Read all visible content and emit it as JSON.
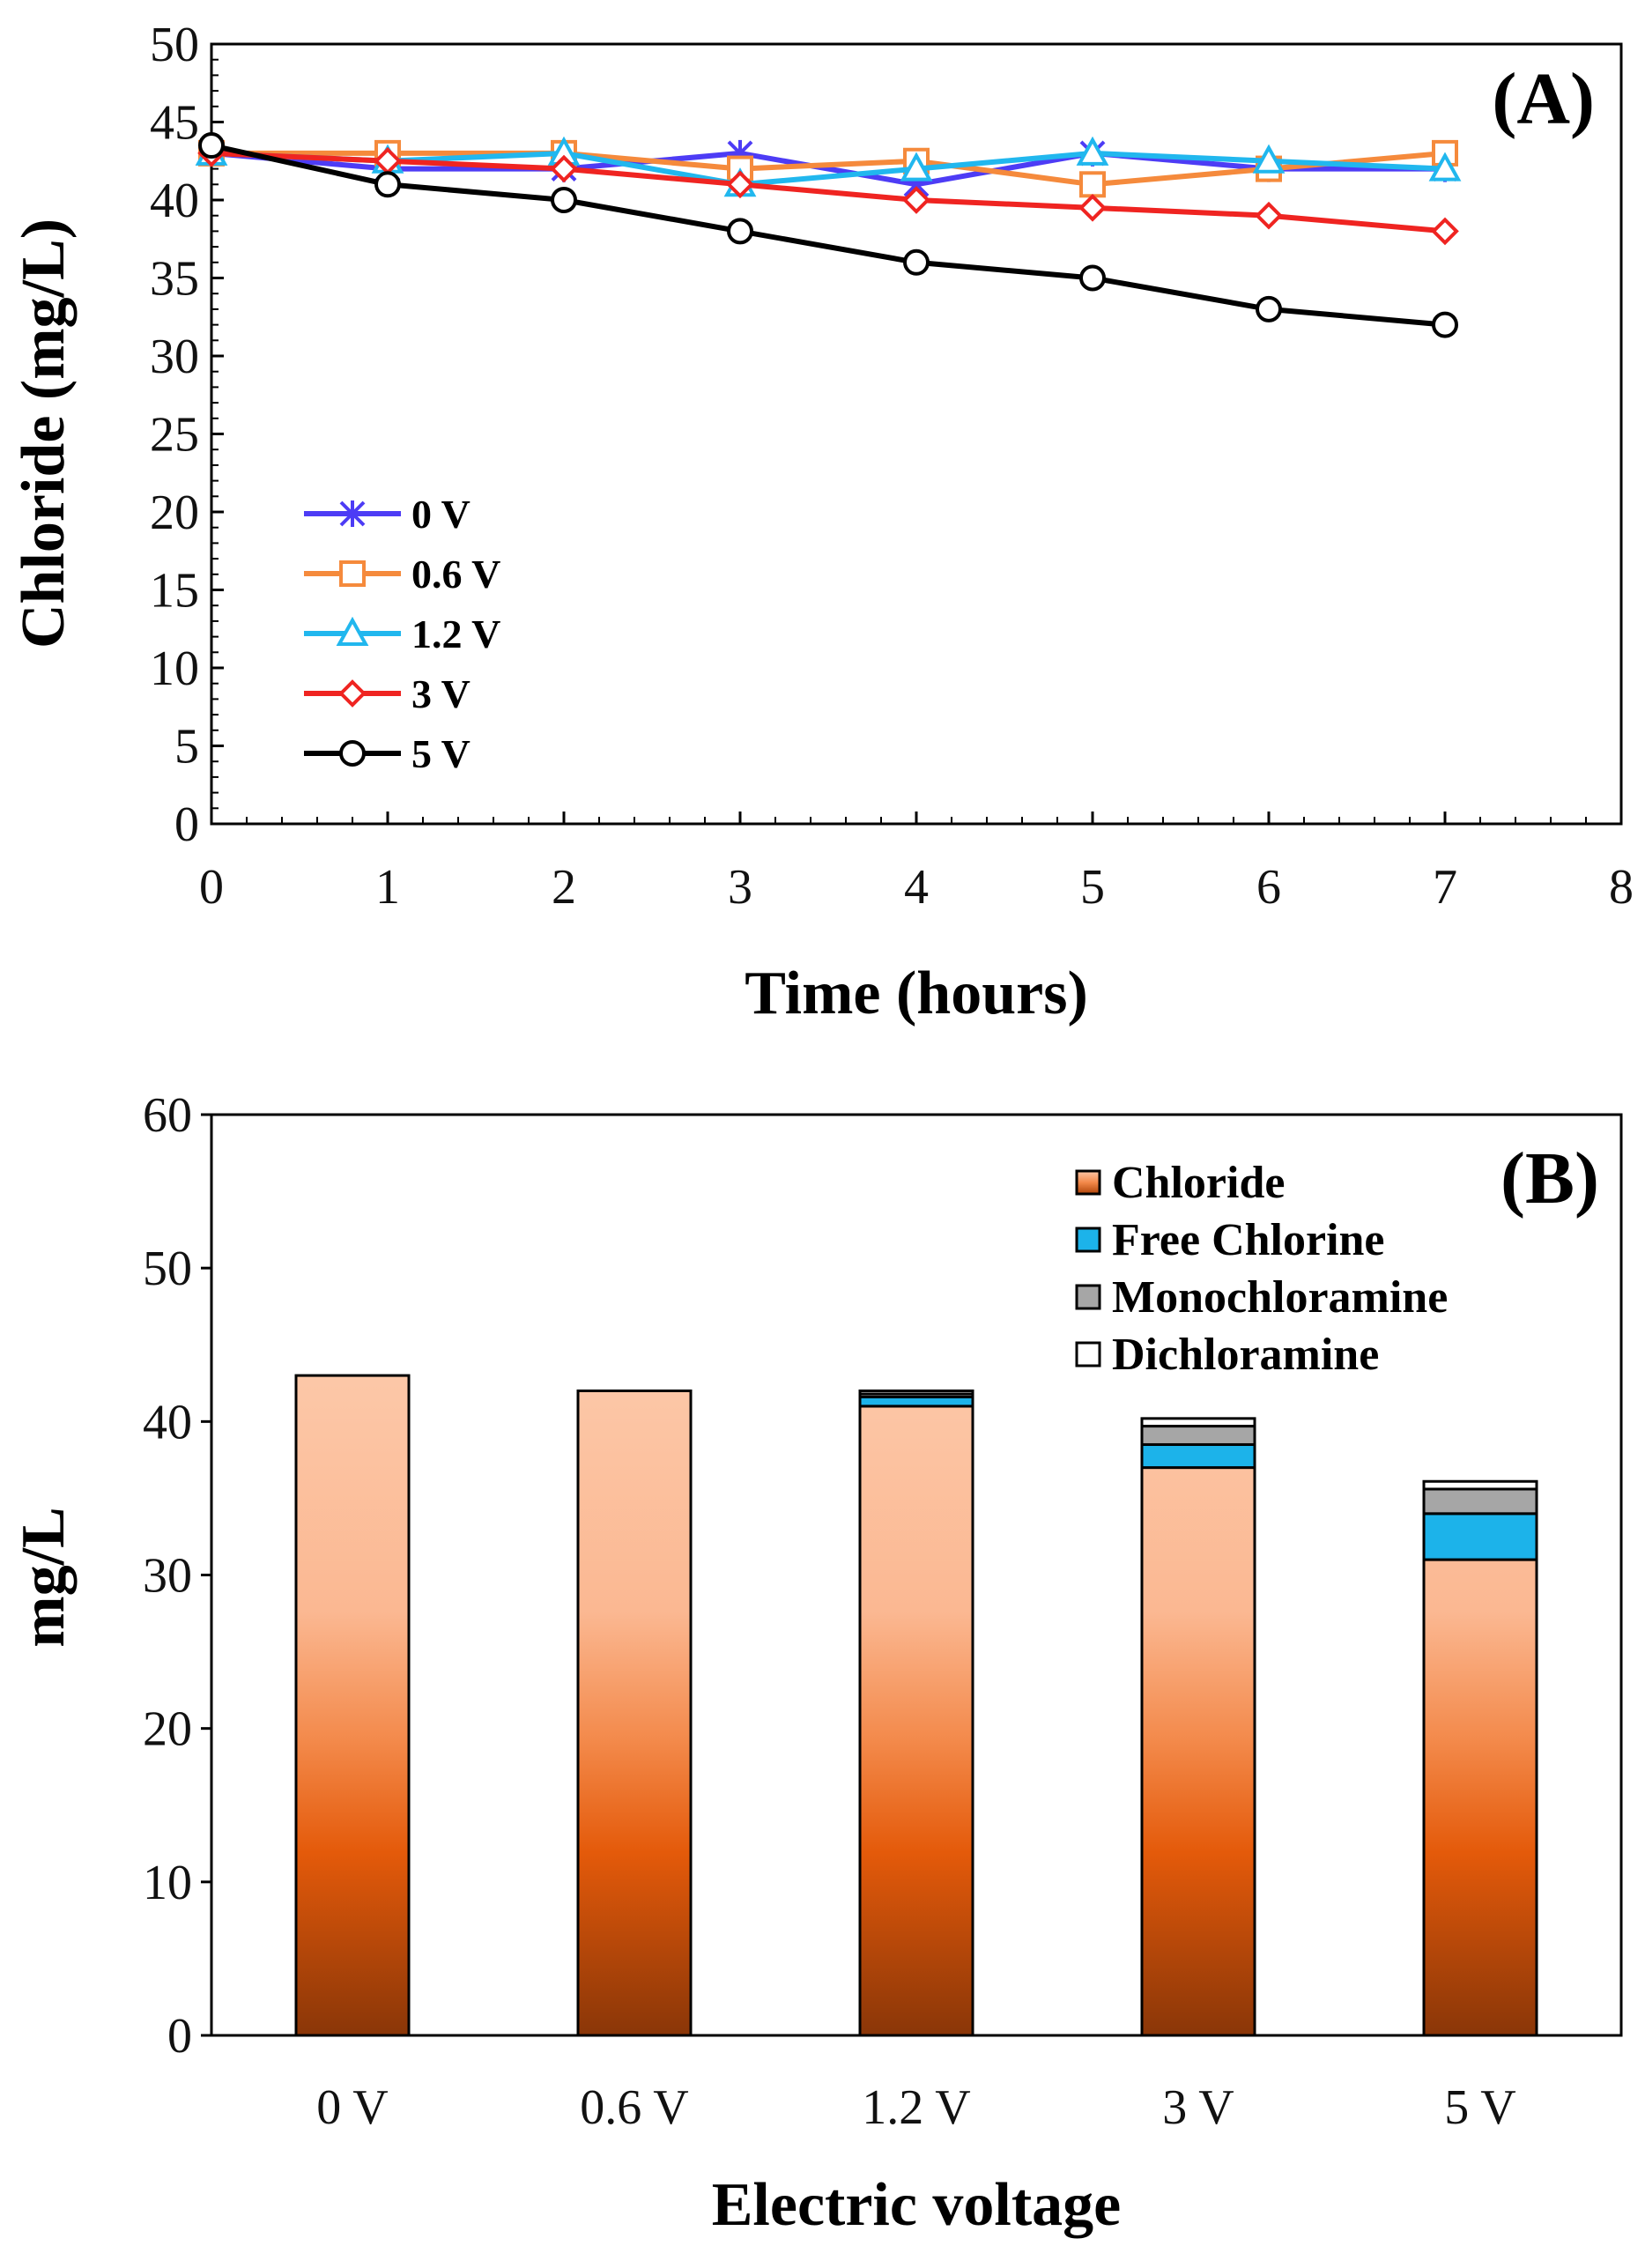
{
  "chart_data": [
    {
      "type": "line",
      "panel_label": "(A)",
      "xlabel": "Time (hours)",
      "ylabel": "Chloride (mg/L)",
      "xlim": [
        0,
        8
      ],
      "ylim": [
        0,
        50
      ],
      "x_ticks": [
        "0",
        "1",
        "2",
        "3",
        "4",
        "5",
        "6",
        "7",
        "8"
      ],
      "y_ticks": [
        "0",
        "5",
        "10",
        "15",
        "20",
        "25",
        "30",
        "35",
        "40",
        "45",
        "50"
      ],
      "legend_position": "lower-left",
      "series": [
        {
          "name": "0 V",
          "color": "#4d3cf5",
          "marker": "asterisk",
          "x": [
            0,
            1,
            2,
            3,
            4,
            5,
            6,
            7
          ],
          "values": [
            43,
            42,
            42,
            43,
            41,
            43,
            42,
            42
          ]
        },
        {
          "name": "0.6 V",
          "color": "#f58a3c",
          "marker": "square",
          "x": [
            0,
            1,
            2,
            3,
            4,
            5,
            6,
            7
          ],
          "values": [
            43,
            43,
            43,
            42,
            42.5,
            41,
            42,
            43
          ]
        },
        {
          "name": "1.2 V",
          "color": "#21b7ee",
          "marker": "triangle",
          "x": [
            0,
            1,
            2,
            3,
            4,
            5,
            6,
            7
          ],
          "values": [
            43,
            42.5,
            43,
            41,
            42,
            43,
            42.5,
            42
          ]
        },
        {
          "name": "3 V",
          "color": "#ef2421",
          "marker": "diamond",
          "x": [
            0,
            1,
            2,
            3,
            4,
            5,
            6,
            7
          ],
          "values": [
            43,
            42.5,
            42,
            41,
            40,
            39.5,
            39,
            38
          ]
        },
        {
          "name": "5 V",
          "color": "#000000",
          "marker": "circle",
          "x": [
            0,
            1,
            2,
            3,
            4,
            5,
            6,
            7
          ],
          "values": [
            43.5,
            41,
            40,
            38,
            36,
            35,
            33,
            32
          ]
        }
      ]
    },
    {
      "type": "bar",
      "stacked": true,
      "panel_label": "(B)",
      "xlabel": "Electric voltage",
      "ylabel": "mg/L",
      "ylim": [
        0,
        60
      ],
      "y_ticks": [
        "0",
        "10",
        "20",
        "30",
        "40",
        "50",
        "60"
      ],
      "categories": [
        "0 V",
        "0.6 V",
        "1.2 V",
        "3 V",
        "5 V"
      ],
      "legend_position": "top-right",
      "series": [
        {
          "name": "Chloride",
          "color": "#e85c10",
          "values": [
            43,
            42,
            41,
            37,
            31
          ]
        },
        {
          "name": "Free Chlorine",
          "color": "#1cb3ea",
          "values": [
            0,
            0,
            0.6,
            1.5,
            3
          ]
        },
        {
          "name": "Monochloramine",
          "color": "#a6a6a6",
          "values": [
            0,
            0,
            0.2,
            1.2,
            1.6
          ]
        },
        {
          "name": "Dichloramine",
          "color": "#ffffff",
          "values": [
            0,
            0,
            0.2,
            0.5,
            0.5
          ]
        }
      ]
    }
  ]
}
